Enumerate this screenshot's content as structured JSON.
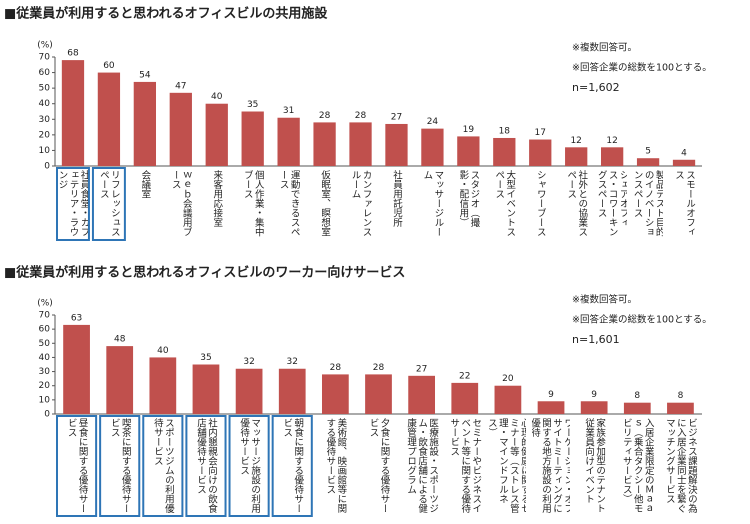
{
  "chart_data": [
    {
      "type": "bar",
      "title": "■従業員が利用すると思われるオフィスビルの共用施設",
      "y_label": "(%)",
      "notes": [
        "※複数回答可。",
        "※回答企業の総数を100とする。",
        "n=1,602"
      ],
      "categories": [
        "社員食堂・カフェテリア・ラウンジ",
        "リフレッシュスペース",
        "会議室",
        "ｗｅｂ会議用ブース",
        "来客用応接室",
        "個人作業・集中ブース",
        "運動できるスペース",
        "仮眠室、瞑想室",
        "カンファレンスルーム",
        "社員用託児所",
        "マッサージルーム",
        "スタジオ（撮影・配信用）",
        "大型イベントスペース",
        "シャワーブース",
        "社外との協業スペース",
        "シェアオフィス・コワーキングスペース",
        "製品テスト目的のイノベーションスペース",
        "スモールオフィス"
      ],
      "values": [
        68,
        60,
        54,
        47,
        40,
        35,
        31,
        28,
        28,
        27,
        24,
        19,
        18,
        17,
        12,
        12,
        5,
        4
      ],
      "color": "#c0504d",
      "highlight": [
        0,
        1
      ],
      "ylim": [
        0,
        70
      ],
      "yticks": [
        0,
        10,
        20,
        30,
        40,
        50,
        60,
        70
      ]
    },
    {
      "type": "bar",
      "title": "■従業員が利用すると思われるオフィスビルのワーカー向けサービス",
      "y_label": "(%)",
      "notes": [
        "※複数回答可。",
        "※回答企業の総数を100とする。",
        "n=1,601"
      ],
      "categories": [
        "昼食に関する優待サービス",
        "喫茶に関する優待サービス",
        "スポーツジムの利用優待サービス",
        "社内懇親会向けの飲食店舗優待サービス",
        "マッサージ施設の利用優待サービス",
        "朝食に関する優待サービス",
        "美術館、映画館等に関する優待サービス",
        "夕食に関する優待サービス",
        "医療施設・スポーツジム・飲食店舗による健康管理プログラム",
        "セミナーやビジネスイベント等に関する優待サービス",
        "心理的健康に関するセミナー等（ストレス管理・マインドフルネス）",
        "ワーケーション・オフサイトミーティングに関する地方施設の利用優待",
        "家族参加型のテナント従業員向けイベント",
        "入居企業限定のＭａａｓ（乗合タクシー他モビリティサービス）",
        "ビジネス課題解決の為に入居企業同士を繋ぐマッチングサービス"
      ],
      "values": [
        63,
        48,
        40,
        35,
        32,
        32,
        28,
        28,
        27,
        22,
        20,
        9,
        9,
        8,
        8
      ],
      "color": "#c0504d",
      "highlight": [
        0,
        1,
        2,
        3,
        4,
        5
      ],
      "ylim": [
        0,
        70
      ],
      "yticks": [
        0,
        10,
        20,
        30,
        40,
        50,
        60,
        70
      ]
    }
  ]
}
